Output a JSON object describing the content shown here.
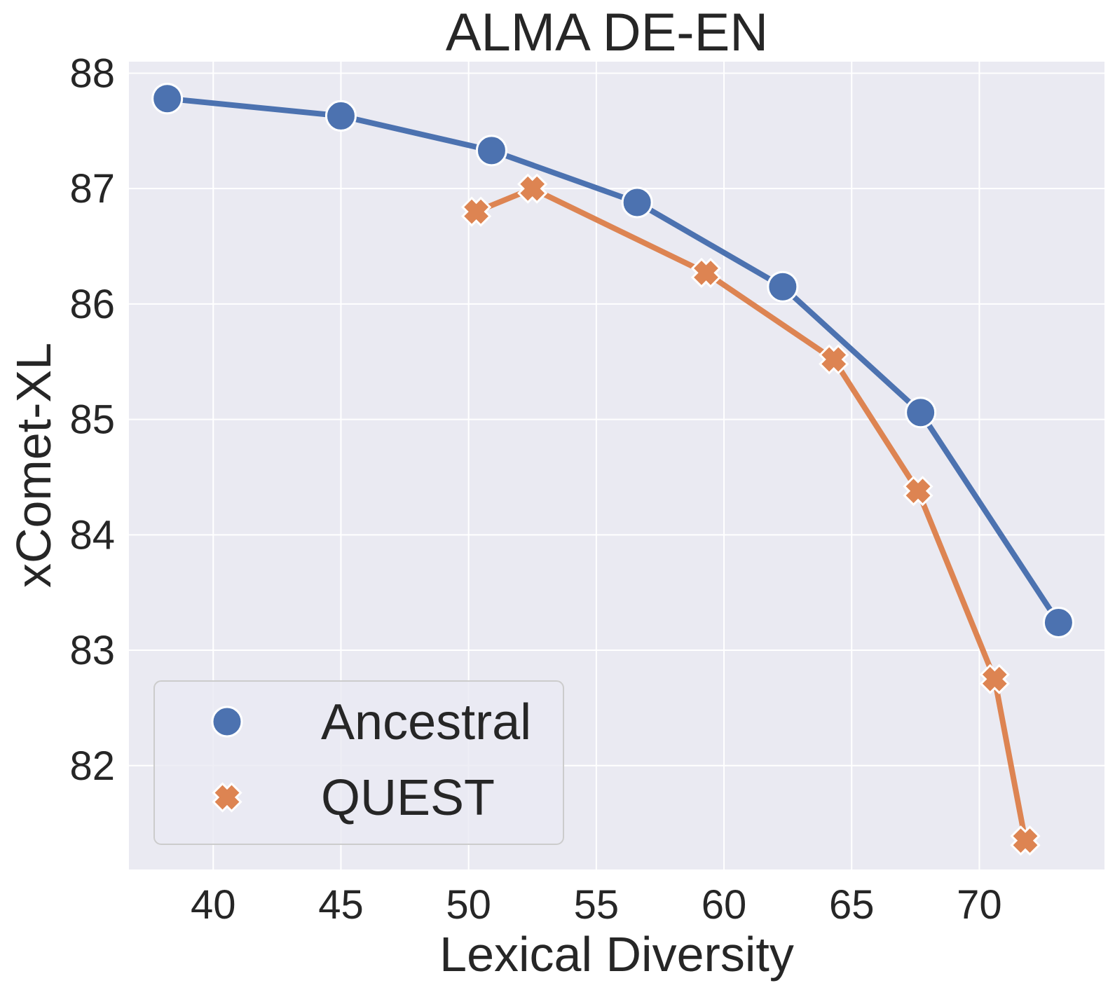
{
  "chart_data": {
    "type": "line",
    "title": "ALMA DE-EN",
    "xlabel": "Lexical Diversity",
    "ylabel": "xComet-XL",
    "xlim": [
      36.7,
      74.9
    ],
    "ylim": [
      81.1,
      88.1
    ],
    "xticks": [
      40,
      45,
      50,
      55,
      60,
      65,
      70
    ],
    "yticks": [
      82,
      83,
      84,
      85,
      86,
      87,
      88
    ],
    "grid": true,
    "legend_position": "lower-left",
    "series": [
      {
        "name": "Ancestral",
        "marker": "circle",
        "color": "#4c72b0",
        "x": [
          38.2,
          45.0,
          50.9,
          56.6,
          62.3,
          67.7,
          73.1
        ],
        "y": [
          87.78,
          87.63,
          87.33,
          86.88,
          86.15,
          85.06,
          83.24
        ]
      },
      {
        "name": "QUEST",
        "marker": "x",
        "color": "#dd8452",
        "x": [
          50.3,
          52.5,
          59.3,
          64.3,
          67.6,
          70.6,
          71.8
        ],
        "y": [
          86.8,
          87.0,
          86.27,
          85.52,
          84.38,
          82.75,
          81.35
        ]
      }
    ]
  }
}
